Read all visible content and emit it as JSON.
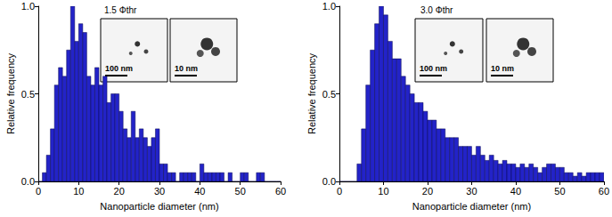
{
  "chart_data": [
    {
      "type": "histogram",
      "annotations": [
        "1.5 Φthr"
      ],
      "inset_labels": [
        "100 nm",
        "10 nm"
      ],
      "x_label": "Nanoparticle diameter (nm)",
      "y_label": "Relative frequency",
      "bins": [
        0,
        1,
        2,
        3,
        4,
        5,
        6,
        7,
        8,
        9,
        10,
        11,
        12,
        13,
        14,
        15,
        16,
        17,
        18,
        19,
        20,
        21,
        22,
        23,
        24,
        25,
        26,
        27,
        28,
        29,
        30,
        31,
        32,
        33,
        34,
        35,
        36,
        37,
        38,
        39,
        40,
        41,
        42,
        43,
        44,
        45,
        46,
        47,
        48,
        49,
        50,
        51,
        52,
        53,
        54,
        55,
        56,
        57,
        58,
        59,
        60
      ],
      "values": [
        0,
        0.05,
        0.15,
        0.3,
        0.55,
        0.65,
        0.6,
        0.75,
        1.0,
        0.8,
        0.9,
        0.85,
        0.6,
        0.55,
        0.65,
        0.55,
        0.6,
        0.45,
        0.5,
        0.5,
        0.4,
        0.3,
        0.25,
        0.4,
        0.25,
        0.3,
        0.25,
        0.2,
        0.25,
        0.3,
        0.1,
        0.1,
        0.05,
        0.05,
        0,
        0.05,
        0.05,
        0.05,
        0.05,
        0,
        0.1,
        0.05,
        0.05,
        0.05,
        0.05,
        0.05,
        0,
        0.05,
        0,
        0,
        0.05,
        0.05,
        0,
        0,
        0.05,
        0.05,
        0,
        0,
        0,
        0
      ],
      "color": "#2323c8",
      "xlim": [
        0,
        60
      ],
      "xticks": [
        0,
        10,
        20,
        30,
        40,
        50,
        60
      ],
      "ylim": [
        0,
        1
      ],
      "yticks": [
        {
          "value": 0,
          "label": "0.0"
        },
        {
          "value": 0.5,
          "label": "0.5"
        },
        {
          "value": 1,
          "label": "1.0"
        }
      ],
      "grid": false
    },
    {
      "type": "histogram",
      "annotations": [
        "3.0 Φthr"
      ],
      "inset_labels": [
        "100 nm",
        "10 nm"
      ],
      "x_label": "Nanoparticle diameter (nm)",
      "y_label": "Relative frequency",
      "bins": [
        0,
        1,
        2,
        3,
        4,
        5,
        6,
        7,
        8,
        9,
        10,
        11,
        12,
        13,
        14,
        15,
        16,
        17,
        18,
        19,
        20,
        21,
        22,
        23,
        24,
        25,
        26,
        27,
        28,
        29,
        30,
        31,
        32,
        33,
        34,
        35,
        36,
        37,
        38,
        39,
        40,
        41,
        42,
        43,
        44,
        45,
        46,
        47,
        48,
        49,
        50,
        51,
        52,
        53,
        54,
        55,
        56,
        57,
        58,
        59,
        60
      ],
      "values": [
        0,
        0,
        0,
        0,
        0.1,
        0.3,
        0.55,
        0.75,
        0.9,
        1.0,
        0.95,
        0.8,
        0.7,
        0.7,
        0.6,
        0.55,
        0.5,
        0.45,
        0.45,
        0.4,
        0.35,
        0.35,
        0.3,
        0.3,
        0.25,
        0.25,
        0.25,
        0.2,
        0.2,
        0.2,
        0.15,
        0.2,
        0.15,
        0.12,
        0.15,
        0.12,
        0.1,
        0.12,
        0.1,
        0.1,
        0.08,
        0.1,
        0.08,
        0.1,
        0.08,
        0.05,
        0.08,
        0.1,
        0.1,
        0.08,
        0.08,
        0.05,
        0.05,
        0.03,
        0.05,
        0.03,
        0.05,
        0.05,
        0.05,
        0.05
      ],
      "color": "#2323c8",
      "xlim": [
        0,
        60
      ],
      "xticks": [
        0,
        10,
        20,
        30,
        40,
        50,
        60
      ],
      "ylim": [
        0,
        1
      ],
      "yticks": [
        {
          "value": 0,
          "label": "0.0"
        },
        {
          "value": 0.5,
          "label": "0.5"
        },
        {
          "value": 1,
          "label": "1.0"
        }
      ],
      "grid": false
    }
  ]
}
